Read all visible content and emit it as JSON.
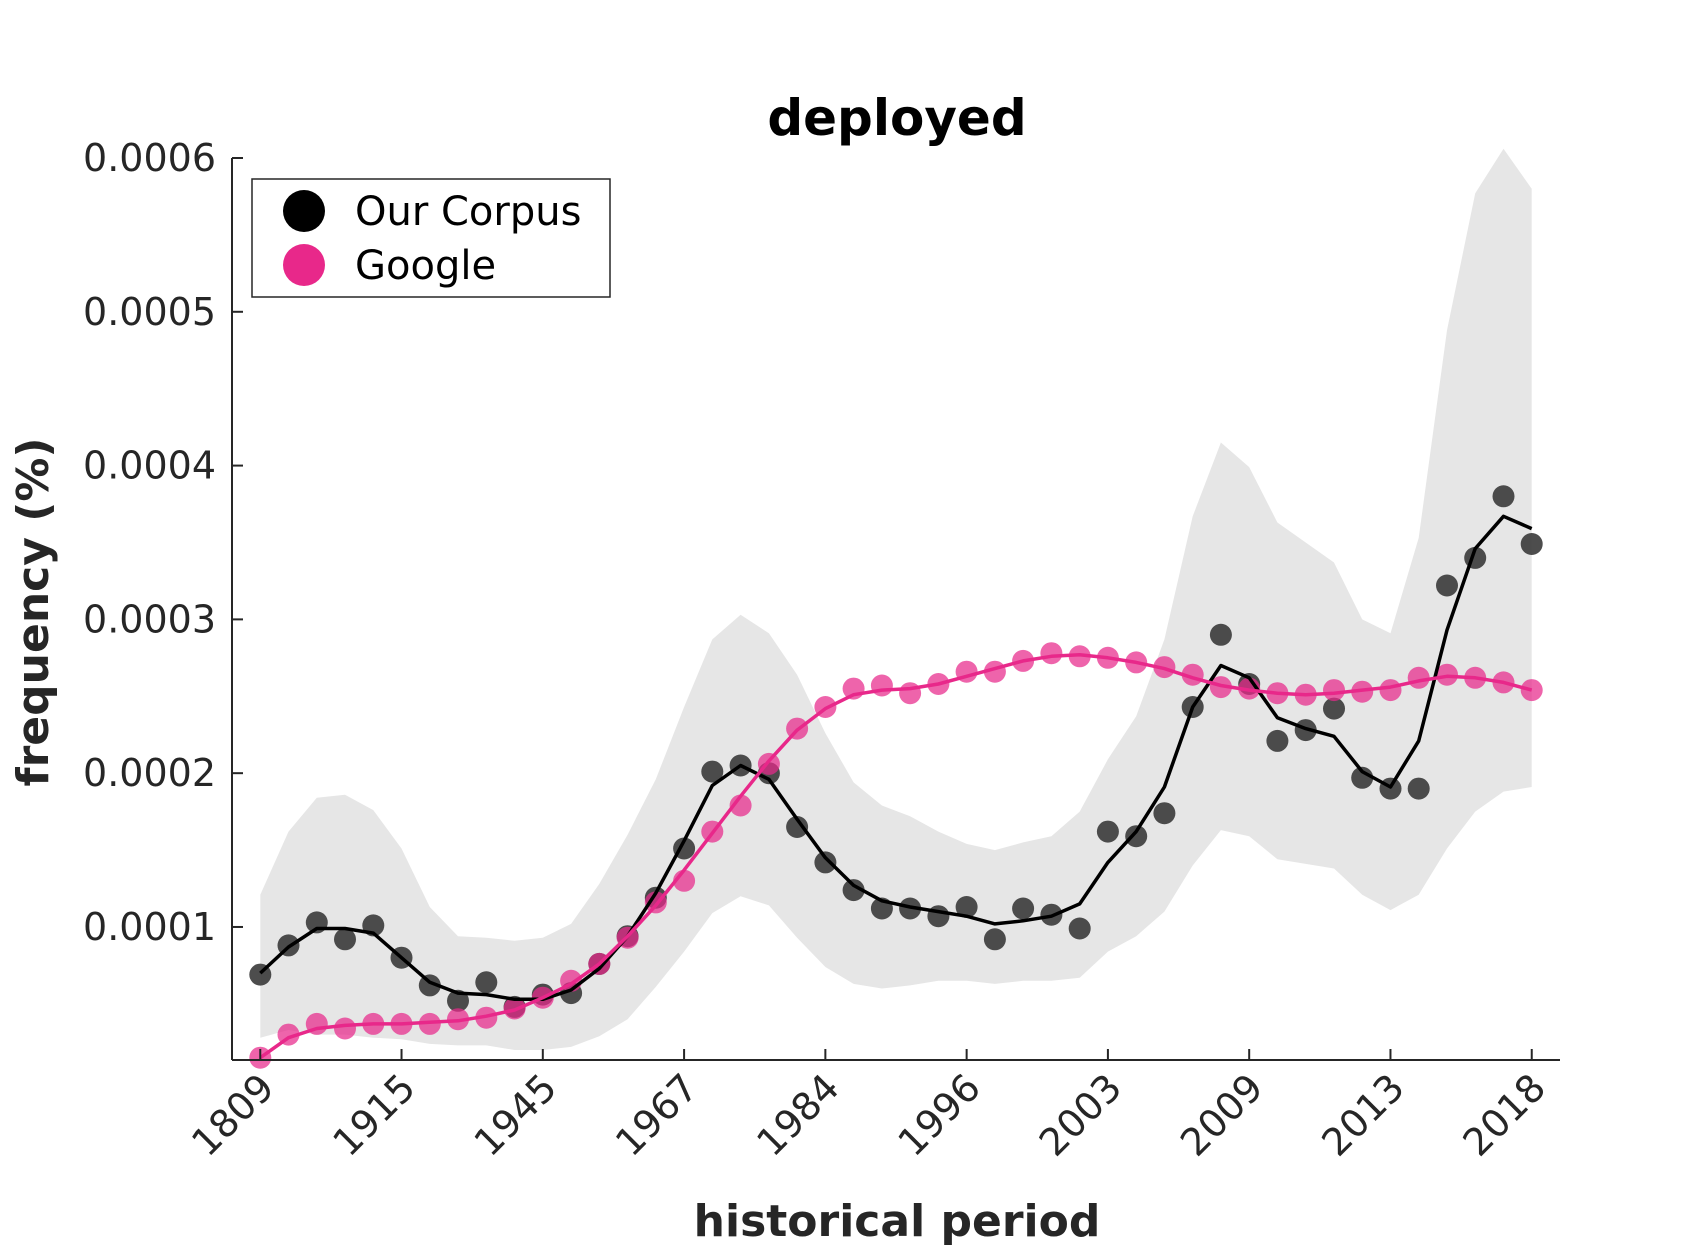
{
  "chart_data": {
    "type": "scatter",
    "title": "deployed",
    "xlabel": "historical period",
    "ylabel": "frequency (%)",
    "x_tick_labels": [
      "1809",
      "1915",
      "1945",
      "1967",
      "1984",
      "1996",
      "2003",
      "2009",
      "2013",
      "2018"
    ],
    "x_tick_index": [
      0,
      5,
      10,
      15,
      20,
      25,
      30,
      35,
      40,
      45
    ],
    "x_index_range": [
      -1,
      46
    ],
    "y_ticks": [
      0.0001,
      0.0002,
      0.0003,
      0.0004,
      0.0005,
      0.0006
    ],
    "y_tick_labels": [
      "0.0001",
      "0.0002",
      "0.0003",
      "0.0004",
      "0.0005",
      "0.0006"
    ],
    "ylim": [
      1.35e-05,
      0.0006
    ],
    "grid": false,
    "legend_position": "top-left",
    "colors": {
      "our_corpus": "#000000",
      "our_corpus_points": "#3a3a3a",
      "google": "#e8288a",
      "band": "#e6e6e6",
      "axis": "#262626"
    },
    "series": [
      {
        "name": "Our Corpus",
        "points": [
          6.9e-05,
          8.8e-05,
          0.000103,
          9.2e-05,
          0.000101,
          8e-05,
          6.2e-05,
          5.2e-05,
          6.4e-05,
          4.8e-05,
          5.6e-05,
          5.7e-05,
          7.6e-05,
          9.4e-05,
          0.000119,
          0.000151,
          0.000201,
          0.000205,
          0.0002,
          0.000165,
          0.000142,
          0.000124,
          0.000112,
          0.000112,
          0.000107,
          0.000113,
          9.2e-05,
          0.000112,
          0.000108,
          9.9e-05,
          0.000162,
          0.000159,
          0.000174,
          0.000243,
          0.00029,
          0.000258,
          0.000221,
          0.000228,
          0.000242,
          0.000197,
          0.00019,
          0.00019,
          0.000322,
          0.00034,
          0.00038,
          0.000349
        ],
        "smooth": [
          7e-05,
          8.7e-05,
          9.9e-05,
          9.9e-05,
          9.6e-05,
          8e-05,
          6.4e-05,
          5.7e-05,
          5.6e-05,
          5.3e-05,
          5.3e-05,
          5.9e-05,
          7.3e-05,
          9.4e-05,
          0.000122,
          0.000156,
          0.000192,
          0.000205,
          0.000196,
          0.00017,
          0.000145,
          0.000127,
          0.000117,
          0.000113,
          0.00011,
          0.000107,
          0.000102,
          0.000104,
          0.000107,
          0.000115,
          0.000142,
          0.000162,
          0.000191,
          0.000243,
          0.00027,
          0.000262,
          0.000236,
          0.000229,
          0.000224,
          0.000201,
          0.000191,
          0.000221,
          0.000293,
          0.000346,
          0.000367,
          0.000359
        ],
        "band_upper": [
          0.000121,
          0.000162,
          0.000184,
          0.000186,
          0.000176,
          0.000151,
          0.000113,
          9.4e-05,
          9.3e-05,
          9.1e-05,
          9.3e-05,
          0.000102,
          0.000128,
          0.00016,
          0.000196,
          0.000243,
          0.000287,
          0.000303,
          0.000291,
          0.000264,
          0.000226,
          0.000194,
          0.000179,
          0.000172,
          0.000162,
          0.000154,
          0.00015,
          0.000155,
          0.000159,
          0.000175,
          0.000209,
          0.000237,
          0.000287,
          0.000367,
          0.000415,
          0.000399,
          0.000363,
          0.00035,
          0.000337,
          0.0003,
          0.000291,
          0.000353,
          0.000488,
          0.000577,
          0.000606,
          0.00058
        ],
        "band_lower": [
          2.8e-05,
          3.3e-05,
          3e-05,
          3e-05,
          2.8e-05,
          2.7e-05,
          2.4e-05,
          2.3e-05,
          2.3e-05,
          2e-05,
          2e-05,
          2.2e-05,
          2.9e-05,
          4e-05,
          6.1e-05,
          8.4e-05,
          0.000109,
          0.00012,
          0.000114,
          9.3e-05,
          7.4e-05,
          6.3e-05,
          6e-05,
          6.2e-05,
          6.5e-05,
          6.5e-05,
          6.3e-05,
          6.5e-05,
          6.5e-05,
          6.7e-05,
          8.4e-05,
          9.4e-05,
          0.00011,
          0.00014,
          0.000163,
          0.000159,
          0.000144,
          0.000141,
          0.000138,
          0.000121,
          0.000111,
          0.000121,
          0.000151,
          0.000175,
          0.000188,
          0.000191
        ]
      },
      {
        "name": "Google",
        "points": [
          1.5e-05,
          3e-05,
          3.7e-05,
          3.4e-05,
          3.7e-05,
          3.7e-05,
          3.7e-05,
          4e-05,
          4.1e-05,
          4.7e-05,
          5.4e-05,
          6.5e-05,
          7.6e-05,
          9.3e-05,
          0.000116,
          0.00013,
          0.000162,
          0.000179,
          0.000206,
          0.000229,
          0.000243,
          0.000255,
          0.000257,
          0.000252,
          0.000258,
          0.000266,
          0.000266,
          0.000273,
          0.000278,
          0.000276,
          0.000275,
          0.000272,
          0.000269,
          0.000264,
          0.000256,
          0.000255,
          0.000252,
          0.000251,
          0.000254,
          0.000253,
          0.000254,
          0.000262,
          0.000264,
          0.000262,
          0.000259,
          0.000254
        ],
        "smooth": [
          1.5e-05,
          2.8e-05,
          3.4e-05,
          3.6e-05,
          3.7e-05,
          3.7e-05,
          3.8e-05,
          3.9e-05,
          4.2e-05,
          4.6e-05,
          5.4e-05,
          6.3e-05,
          7.6e-05,
          9.4e-05,
          0.000114,
          0.000137,
          0.000161,
          0.000185,
          0.000208,
          0.000228,
          0.000242,
          0.000251,
          0.000254,
          0.000255,
          0.000258,
          0.000263,
          0.000268,
          0.000273,
          0.000276,
          0.000277,
          0.000275,
          0.000272,
          0.000268,
          0.000262,
          0.000257,
          0.000254,
          0.000252,
          0.000251,
          0.000252,
          0.000254,
          0.000256,
          0.00026,
          0.000263,
          0.000262,
          0.000259,
          0.000254
        ]
      }
    ]
  }
}
